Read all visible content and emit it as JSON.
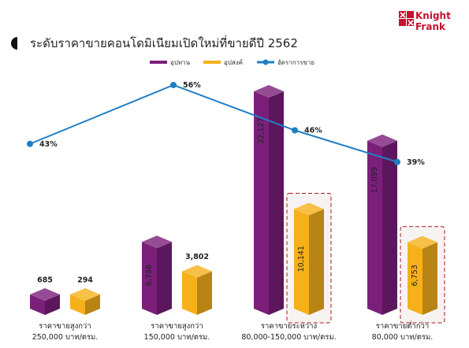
{
  "brand": {
    "line1": "Knight",
    "line2": "Frank",
    "color": "#c8102e"
  },
  "chart_data": {
    "type": "bar",
    "title": "ระดับราคาขายคอนโดมิเนียมเปิดใหม่ที่ขายดีปี 2562",
    "categories": [
      {
        "line1": "ราคาขายสูงกว่า",
        "line2": "250,000 บาท/ตรม."
      },
      {
        "line1": "ราคาขายสูงกว่า",
        "line2": "150,000 บาท/ตรม."
      },
      {
        "line1": "ราคาขายระหว่าง",
        "line2": "80,000-150,000 บาท/ตรม."
      },
      {
        "line1": "ราคาขายต่ำกว่า",
        "line2": "80,000 บาท/ตรม."
      }
    ],
    "series": [
      {
        "name": "อุปทาน",
        "type": "bar",
        "values": [
          685,
          6798,
          22127,
          17099
        ],
        "labels": [
          "685",
          "6,798",
          "22,127",
          "17,099"
        ],
        "color": "#7b1f7a"
      },
      {
        "name": "อุปสงค์",
        "type": "bar",
        "values": [
          294,
          3802,
          10141,
          6753
        ],
        "labels": [
          "294",
          "3,802",
          "10,141",
          "6,753"
        ],
        "color": "#f5b01a"
      },
      {
        "name": "อัตราการขาย",
        "type": "line",
        "values": [
          43,
          56,
          46,
          39
        ],
        "labels": [
          "43%",
          "56%",
          "46%",
          "39%"
        ],
        "color": "#1f7fc4"
      }
    ],
    "highlighted_categories": [
      2,
      3
    ],
    "legend_position": "top"
  }
}
